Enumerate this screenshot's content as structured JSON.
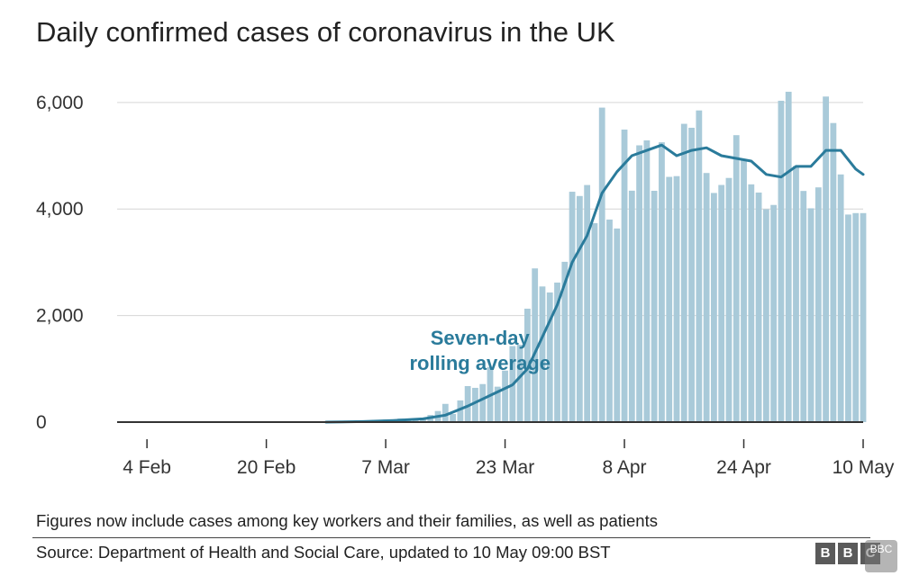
{
  "chart_data": {
    "type": "bar",
    "title": "Daily confirmed cases of coronavirus in the UK",
    "ylim": [
      0,
      6200
    ],
    "y_ticks": [
      0,
      2000,
      4000,
      6000
    ],
    "y_tick_labels": [
      "0",
      "2,000",
      "4,000",
      "6,000"
    ],
    "x_start": "2020-01-31",
    "x_end": "2020-05-10",
    "x_ticks": [
      "2020-02-04",
      "2020-02-20",
      "2020-03-07",
      "2020-03-23",
      "2020-04-08",
      "2020-04-24",
      "2020-05-10"
    ],
    "x_tick_labels": [
      "4 Feb",
      "20 Feb",
      "7 Mar",
      "23 Mar",
      "8 Apr",
      "24 Apr",
      "10 May"
    ],
    "grid": true,
    "series": [
      {
        "name": "",
        "kind": "bar",
        "color": "#a9cad9",
        "dates": [
          "2020-03-01",
          "2020-03-02",
          "2020-03-03",
          "2020-03-04",
          "2020-03-05",
          "2020-03-06",
          "2020-03-07",
          "2020-03-08",
          "2020-03-09",
          "2020-03-10",
          "2020-03-11",
          "2020-03-12",
          "2020-03-13",
          "2020-03-14",
          "2020-03-15",
          "2020-03-16",
          "2020-03-17",
          "2020-03-18",
          "2020-03-19",
          "2020-03-20",
          "2020-03-21",
          "2020-03-22",
          "2020-03-23",
          "2020-03-24",
          "2020-03-25",
          "2020-03-26",
          "2020-03-27",
          "2020-03-28",
          "2020-03-29",
          "2020-03-30",
          "2020-03-31",
          "2020-04-01",
          "2020-04-02",
          "2020-04-03",
          "2020-04-04",
          "2020-04-05",
          "2020-04-06",
          "2020-04-07",
          "2020-04-08",
          "2020-04-09",
          "2020-04-10",
          "2020-04-11",
          "2020-04-12",
          "2020-04-13",
          "2020-04-14",
          "2020-04-15",
          "2020-04-16",
          "2020-04-17",
          "2020-04-18",
          "2020-04-19",
          "2020-04-20",
          "2020-04-21",
          "2020-04-22",
          "2020-04-23",
          "2020-04-24",
          "2020-04-25",
          "2020-04-26",
          "2020-04-27",
          "2020-04-28",
          "2020-04-29",
          "2020-04-30",
          "2020-05-01",
          "2020-05-02",
          "2020-05-03",
          "2020-05-04",
          "2020-05-05",
          "2020-05-06",
          "2020-05-07",
          "2020-05-08",
          "2020-05-09",
          "2020-05-10"
        ],
        "values": [
          12,
          4,
          12,
          11,
          34,
          30,
          48,
          43,
          67,
          46,
          50,
          83,
          134,
          208,
          342,
          152,
          407,
          676,
          643,
          714,
          1035,
          665,
          967,
          1427,
          1452,
          2129,
          2885,
          2546,
          2433,
          2619,
          3009,
          4324,
          4244,
          4450,
          3735,
          5903,
          3802,
          3634,
          5491,
          4344,
          5195,
          5288,
          4342,
          5252,
          4603,
          4617,
          5599,
          5525,
          5850,
          4676,
          4301,
          4451,
          4583,
          5386,
          4913,
          4463,
          4309,
          3996,
          4076,
          6032,
          6201,
          4806,
          4339,
          4013,
          4406,
          6111,
          5614,
          4649,
          3896,
          3923,
          3923
        ]
      },
      {
        "name": "Seven-day rolling average",
        "kind": "line",
        "color": "#2a7b9b",
        "dates": [
          "2020-02-28",
          "2020-03-04",
          "2020-03-08",
          "2020-03-12",
          "2020-03-15",
          "2020-03-18",
          "2020-03-21",
          "2020-03-24",
          "2020-03-26",
          "2020-03-28",
          "2020-03-30",
          "2020-04-01",
          "2020-04-03",
          "2020-04-05",
          "2020-04-07",
          "2020-04-09",
          "2020-04-11",
          "2020-04-13",
          "2020-04-15",
          "2020-04-17",
          "2020-04-19",
          "2020-04-21",
          "2020-04-23",
          "2020-04-25",
          "2020-04-27",
          "2020-04-29",
          "2020-05-01",
          "2020-05-03",
          "2020-05-05",
          "2020-05-07",
          "2020-05-09",
          "2020-05-10"
        ],
        "values": [
          0,
          10,
          30,
          60,
          130,
          300,
          500,
          700,
          1000,
          1600,
          2200,
          3000,
          3500,
          4300,
          4700,
          5000,
          5100,
          5200,
          5000,
          5100,
          5150,
          5000,
          4950,
          4900,
          4650,
          4600,
          4800,
          4800,
          5100,
          5100,
          4750,
          4650
        ]
      }
    ],
    "annotation": {
      "lines": [
        "Seven-day",
        "rolling average"
      ],
      "anchor_date": "2020-03-13",
      "anchor_value": 1450
    },
    "footnote": "Figures now include cases among key workers and their families, as well as patients",
    "source": "Source: Department of Health and Social Care, updated to 10 May 09:00 BST",
    "logo_letters": [
      "B",
      "B",
      "C"
    ],
    "watermark": "BBC"
  }
}
